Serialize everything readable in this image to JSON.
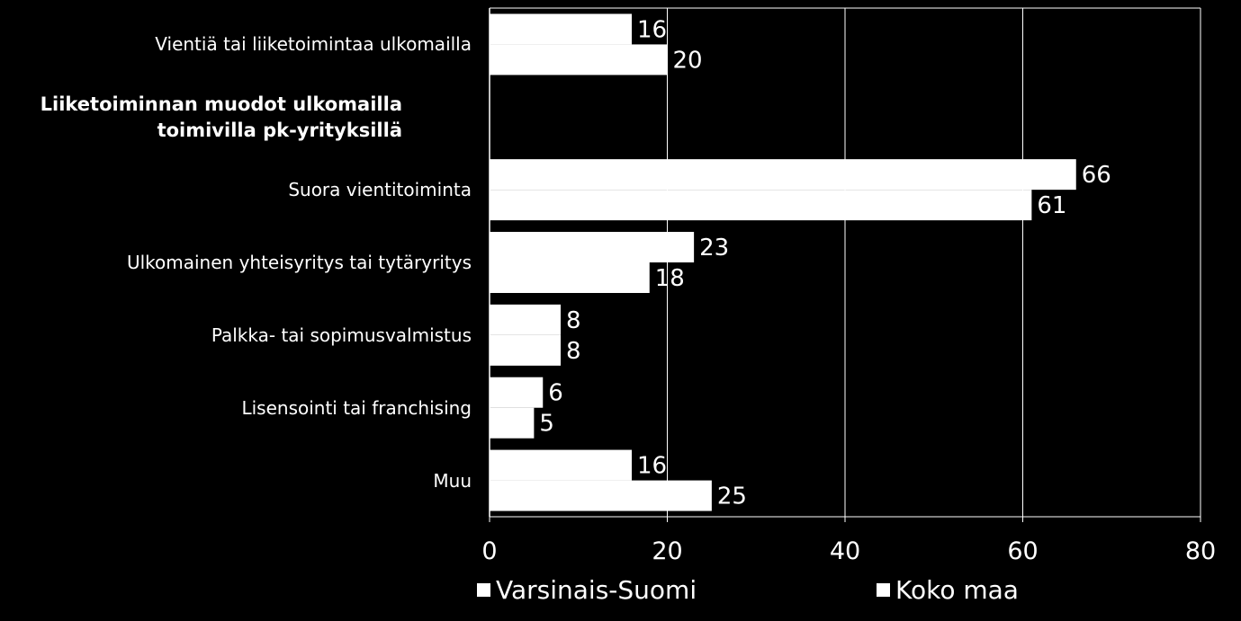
{
  "chart_data": {
    "type": "bar",
    "orientation": "horizontal",
    "heading": "Liiketoiminnan muodot ulkomailla toimivilla pk-yrityksillä",
    "heading_lines": [
      "Liiketoiminnan muodot ulkomailla",
      "toimivilla pk-yrityksillä"
    ],
    "categories": [
      "Vientiä tai liiketoimintaa ulkomailla",
      "",
      "Suora vientitoiminta",
      "Ulkomainen yhteisyritys tai tytäryritys",
      "Palkka- tai sopimusvalmistus",
      "Lisensointi tai franchising",
      "Muu"
    ],
    "series": [
      {
        "name": "Varsinais-Suomi",
        "values": [
          16,
          null,
          66,
          23,
          8,
          6,
          16
        ]
      },
      {
        "name": "Koko maa",
        "values": [
          20,
          null,
          61,
          18,
          8,
          5,
          25
        ]
      }
    ],
    "xlim": [
      0,
      80
    ],
    "xticks": [
      0,
      20,
      40,
      60,
      80
    ],
    "grid": true,
    "legend_position": "bottom",
    "colors": {
      "background": "#000000",
      "bars": "#ffffff",
      "text": "#ffffff",
      "grid": "#ffffff"
    }
  }
}
